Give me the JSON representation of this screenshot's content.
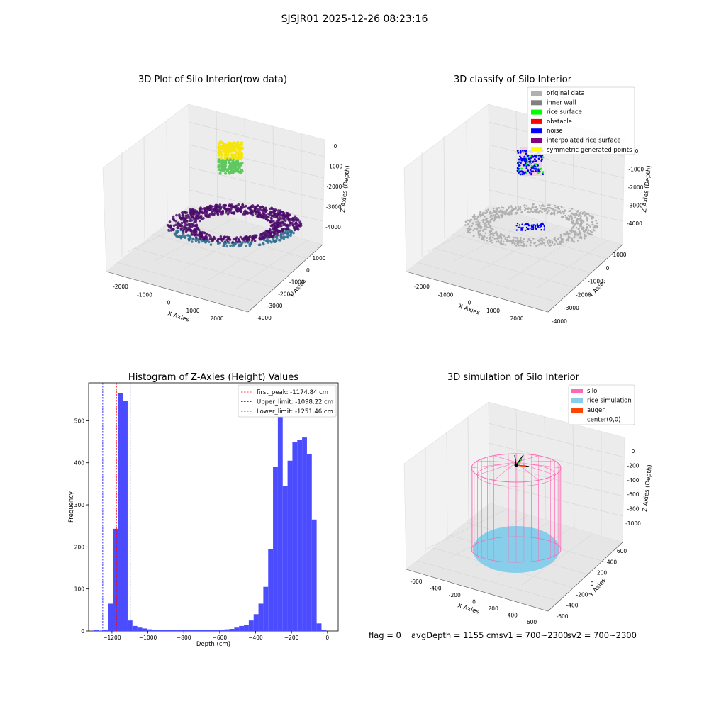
{
  "figure": {
    "title": "SJSJR01 2025-12-26 08:23:16"
  },
  "panel_raw": {
    "title": "3D Plot of Silo Interior(row data)",
    "xlabel": "X Axies",
    "ylabel": "Y Axies",
    "zlabel": "Z Axies (Depth)",
    "xticks": [
      "-2000",
      "-1000",
      "0",
      "1000",
      "2000"
    ],
    "yticks": [
      "1000",
      "0",
      "-1000",
      "-2000",
      "-3000",
      "-4000"
    ],
    "zticks": [
      "0",
      "-1000",
      "-2000",
      "-3000",
      "-4000"
    ],
    "colors": {
      "top_high": "#f5e50c",
      "top_low": "#5fc85f",
      "floor": "#4b0c6b",
      "floor_edge": "#2e6e8e"
    }
  },
  "panel_classify": {
    "title": "3D classify of Silo Interior",
    "xlabel": "X Axies",
    "ylabel": "Y Axies",
    "zlabel": "Z Axies (Depth)",
    "xticks": [
      "-2000",
      "-1000",
      "0",
      "1000",
      "2000"
    ],
    "yticks": [
      "1000",
      "0",
      "-1000",
      "-2000",
      "-3000",
      "-4000"
    ],
    "zticks": [
      "0",
      "-1000",
      "-2000",
      "-3000",
      "-4000"
    ],
    "legend": [
      {
        "label": "original data",
        "color": "#b0b0b0"
      },
      {
        "label": "inner wall",
        "color": "#808080"
      },
      {
        "label": "rice surface",
        "color": "#00ff00"
      },
      {
        "label": "obstacle",
        "color": "#ff0000"
      },
      {
        "label": "noise",
        "color": "#0000ff"
      },
      {
        "label": "interpolated rice surface",
        "color": "#800080"
      },
      {
        "label": "symmetric generated points",
        "color": "#ffff00"
      }
    ]
  },
  "panel_sim": {
    "title": "3D simulation of Silo Interior",
    "xlabel": "X Axies",
    "ylabel": "Y Axies",
    "zlabel": "Z Axies (Depth)",
    "xticks": [
      "-600",
      "-400",
      "-200",
      "0",
      "200",
      "400",
      "600"
    ],
    "yticks": [
      "600",
      "400",
      "200",
      "0",
      "-200",
      "-400",
      "-600"
    ],
    "zticks": [
      "0",
      "-200",
      "-400",
      "-600",
      "-800",
      "-1000"
    ],
    "legend": [
      {
        "label": "silo",
        "color": "#ff69b4"
      },
      {
        "label": "rice simulation",
        "color": "#87ceeb"
      },
      {
        "label": "auger",
        "color": "#ff4500"
      },
      {
        "label": "center(0,0)",
        "color": "#ffffff"
      }
    ]
  },
  "status": {
    "flag": "flag = 0",
    "avg": "avgDepth = 1155 cmsv1 = 700~2300",
    "sv2": "sv2 = 700~2300"
  },
  "chart_data": {
    "type": "bar",
    "title": "Histogram of Z-Axies (Height) Values",
    "xlabel": "Depth (cm)",
    "ylabel": "Frequency",
    "xlim": [
      -1330,
      60
    ],
    "ylim": [
      0,
      590
    ],
    "xticks": [
      -1200,
      -1000,
      -800,
      -600,
      -400,
      -200,
      0
    ],
    "yticks": [
      0,
      100,
      200,
      300,
      400,
      500
    ],
    "bin_width": 27,
    "bin_starts": [
      -1302,
      -1275,
      -1248,
      -1221,
      -1194,
      -1167,
      -1140,
      -1113,
      -1086,
      -1059,
      -1032,
      -1005,
      -978,
      -951,
      -924,
      -897,
      -870,
      -843,
      -816,
      -789,
      -762,
      -735,
      -708,
      -681,
      -654,
      -627,
      -600,
      -573,
      -546,
      -519,
      -492,
      -465,
      -438,
      -411,
      -384,
      -357,
      -330,
      -303,
      -276,
      -249,
      -222,
      -195,
      -168,
      -141,
      -114,
      -87,
      -60,
      -33,
      -6
    ],
    "values": [
      2,
      1,
      3,
      65,
      243,
      565,
      547,
      25,
      12,
      8,
      6,
      4,
      3,
      3,
      2,
      3,
      2,
      2,
      2,
      2,
      2,
      3,
      3,
      2,
      3,
      3,
      3,
      4,
      5,
      8,
      12,
      15,
      25,
      40,
      65,
      105,
      195,
      390,
      515,
      345,
      405,
      450,
      455,
      460,
      420,
      265,
      18,
      2,
      0
    ],
    "bar_color": "#4b4bff",
    "lines": [
      {
        "label": "first_peak: -1174.84 cm",
        "x": -1174.84,
        "color": "#ff0000"
      },
      {
        "label": "Upper_limit: -1098.22 cm",
        "x": -1098.22,
        "color": "#000080"
      },
      {
        "label": "Lower_limit: -1251.46 cm",
        "x": -1251.46,
        "color": "#0000ff"
      }
    ],
    "legend_position": "upper right"
  }
}
